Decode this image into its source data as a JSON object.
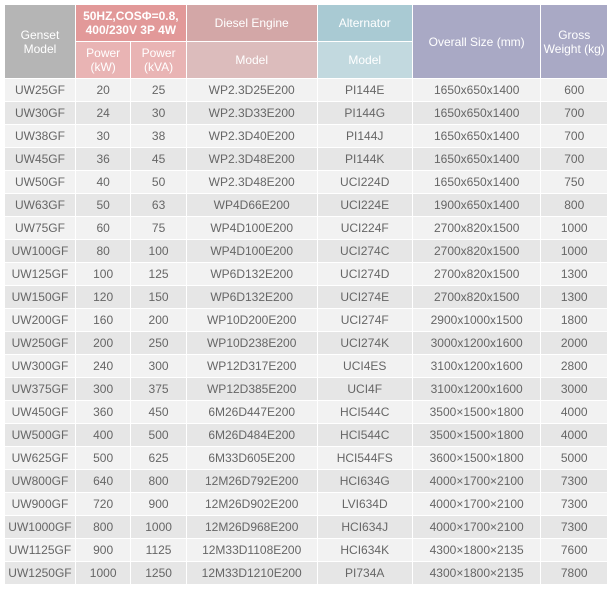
{
  "colors": {
    "hdr_model": "#b5b5b5",
    "hdr_power": "#e29999",
    "hdr_sub": "#e9b4b4",
    "hdr_diesel": "#d3a7a7",
    "hdr_sub2": "#dcbcbc",
    "hdr_alt": "#a9cad3",
    "hdr_sub3": "#c2d9df",
    "hdr_size": "#a9a9c5",
    "hdr_weight": "#a9a9c5",
    "row_odd": "#f2f2f2",
    "row_even": "#e6e6e6"
  },
  "header": {
    "genset_model": "Genset Model",
    "power_spec": "50HZ,COSΦ=0.8, 400/230V 3P 4W",
    "power_kw": "Power (kW)",
    "power_kva": "Power (kVA)",
    "diesel": "Diesel Engine",
    "diesel_sub": "Model",
    "alternator": "Alternator",
    "alt_sub": "Model",
    "overall_size": "Overall Size (mm)",
    "gross_weight": "Gross Weight (kg)"
  },
  "rows": [
    {
      "model": "UW25GF",
      "kw": "20",
      "kva": "25",
      "diesel": "WP2.3D25E200",
      "alt": "PI144E",
      "size": "1650x650x1400",
      "weight": "600"
    },
    {
      "model": "UW30GF",
      "kw": "24",
      "kva": "30",
      "diesel": "WP2.3D33E200",
      "alt": "PI144G",
      "size": "1650x650x1400",
      "weight": "700"
    },
    {
      "model": "UW38GF",
      "kw": "30",
      "kva": "38",
      "diesel": "WP2.3D40E200",
      "alt": "PI144J",
      "size": "1650x650x1400",
      "weight": "700"
    },
    {
      "model": "UW45GF",
      "kw": "36",
      "kva": "45",
      "diesel": "WP2.3D48E200",
      "alt": "PI144K",
      "size": "1650x650x1400",
      "weight": "700"
    },
    {
      "model": "UW50GF",
      "kw": "40",
      "kva": "50",
      "diesel": "WP2.3D48E200",
      "alt": "UCI224D",
      "size": "1650x650x1400",
      "weight": "750"
    },
    {
      "model": "UW63GF",
      "kw": "50",
      "kva": "63",
      "diesel": "WP4D66E200",
      "alt": "UCI224E",
      "size": "1900x650x1400",
      "weight": "800"
    },
    {
      "model": "UW75GF",
      "kw": "60",
      "kva": "75",
      "diesel": "WP4D100E200",
      "alt": "UCI224F",
      "size": "2700x820x1500",
      "weight": "1000"
    },
    {
      "model": "UW100GF",
      "kw": "80",
      "kva": "100",
      "diesel": "WP4D100E200",
      "alt": "UCI274C",
      "size": "2700x820x1500",
      "weight": "1000"
    },
    {
      "model": "UW125GF",
      "kw": "100",
      "kva": "125",
      "diesel": "WP6D132E200",
      "alt": "UCI274D",
      "size": "2700x820x1500",
      "weight": "1300"
    },
    {
      "model": "UW150GF",
      "kw": "120",
      "kva": "150",
      "diesel": "WP6D132E200",
      "alt": "UCI274E",
      "size": "2700x820x1500",
      "weight": "1300"
    },
    {
      "model": "UW200GF",
      "kw": "160",
      "kva": "200",
      "diesel": "WP10D200E200",
      "alt": "UCI274F",
      "size": "2900x1000x1500",
      "weight": "1800"
    },
    {
      "model": "UW250GF",
      "kw": "200",
      "kva": "250",
      "diesel": "WP10D238E200",
      "alt": "UCI274K",
      "size": "3000x1200x1600",
      "weight": "2000"
    },
    {
      "model": "UW300GF",
      "kw": "240",
      "kva": "300",
      "diesel": "WP12D317E200",
      "alt": "UCI4ES",
      "size": "3100x1200x1600",
      "weight": "2800"
    },
    {
      "model": "UW375GF",
      "kw": "300",
      "kva": "375",
      "diesel": "WP12D385E200",
      "alt": "UCI4F",
      "size": "3100x1200x1600",
      "weight": "3000"
    },
    {
      "model": "UW450GF",
      "kw": "360",
      "kva": "450",
      "diesel": "6M26D447E200",
      "alt": "HCI544C",
      "size": "3500×1500×1800",
      "weight": "4000"
    },
    {
      "model": "UW500GF",
      "kw": "400",
      "kva": "500",
      "diesel": "6M26D484E200",
      "alt": "HCI544C",
      "size": "3500×1500×1800",
      "weight": "4000"
    },
    {
      "model": "UW625GF",
      "kw": "500",
      "kva": "625",
      "diesel": "6M33D605E200",
      "alt": "HCI544FS",
      "size": "3600×1500×1800",
      "weight": "5000"
    },
    {
      "model": "UW800GF",
      "kw": "640",
      "kva": "800",
      "diesel": "12M26D792E200",
      "alt": "HCI634G",
      "size": "4000×1700×2100",
      "weight": "7300"
    },
    {
      "model": "UW900GF",
      "kw": "720",
      "kva": "900",
      "diesel": "12M26D902E200",
      "alt": "LVI634D",
      "size": "4000×1700×2100",
      "weight": "7300"
    },
    {
      "model": "UW1000GF",
      "kw": "800",
      "kva": "1000",
      "diesel": "12M26D968E200",
      "alt": "HCI634J",
      "size": "4000×1700×2100",
      "weight": "7300"
    },
    {
      "model": "UW1125GF",
      "kw": "900",
      "kva": "1125",
      "diesel": "12M33D1108E200",
      "alt": "HCI634K",
      "size": "4300×1800×2135",
      "weight": "7600"
    },
    {
      "model": "UW1250GF",
      "kw": "1000",
      "kva": "1250",
      "diesel": "12M33D1210E200",
      "alt": "PI734A",
      "size": "4300×1800×2135",
      "weight": "7800"
    }
  ]
}
